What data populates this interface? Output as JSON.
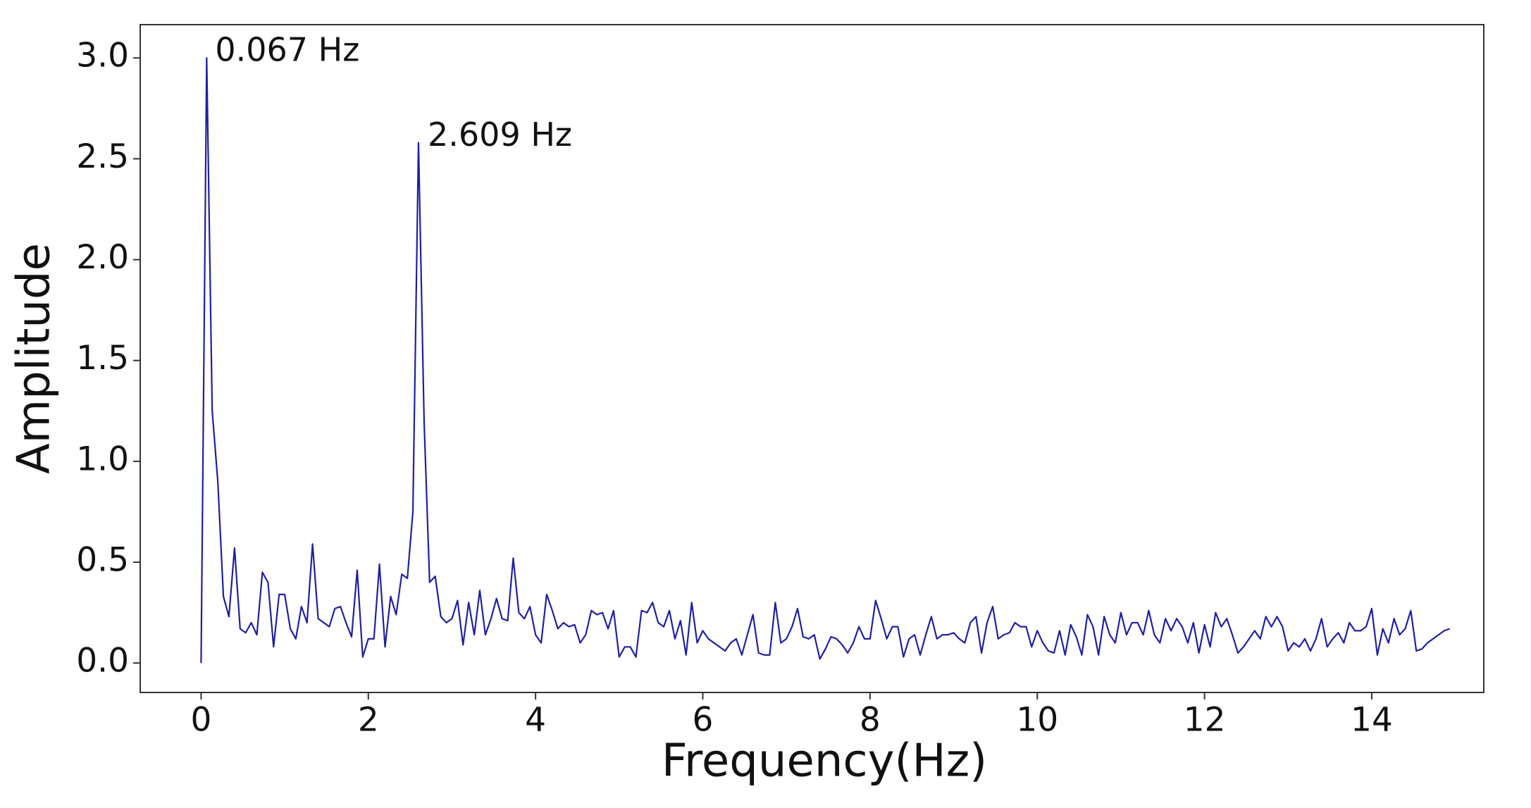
{
  "chart_data": {
    "type": "line",
    "x_label": "Frequency(Hz)",
    "y_label": "Amplitude",
    "color": "#2020a0",
    "xlim": [
      -0.728,
      15.34
    ],
    "ylim": [
      -0.146,
      3.165
    ],
    "xticks": [
      0,
      2,
      4,
      6,
      8,
      10,
      12,
      14
    ],
    "yticks": [
      {
        "value": 0,
        "label": "0.0"
      },
      0.5,
      {
        "value": 1,
        "label": "1.0"
      },
      1.5,
      {
        "value": 2,
        "label": "2.0"
      },
      2.5,
      {
        "value": 3,
        "label": "3.0"
      }
    ],
    "annotations": [
      {
        "text": "0.067 Hz",
        "x": 0.067,
        "y": 3.0
      },
      {
        "text": "2.609 Hz",
        "x": 2.609,
        "y": 2.58
      }
    ],
    "x": [
      0,
      0.067,
      0.133,
      0.2,
      0.267,
      0.333,
      0.4,
      0.467,
      0.533,
      0.6,
      0.667,
      0.733,
      0.8,
      0.867,
      0.933,
      1,
      1.067,
      1.133,
      1.2,
      1.267,
      1.333,
      1.4,
      1.467,
      1.533,
      1.6,
      1.667,
      1.733,
      1.8,
      1.867,
      1.933,
      2,
      2.067,
      2.133,
      2.2,
      2.267,
      2.333,
      2.4,
      2.467,
      2.533,
      2.6,
      2.667,
      2.733,
      2.8,
      2.867,
      2.933,
      3,
      3.067,
      3.133,
      3.2,
      3.267,
      3.333,
      3.4,
      3.467,
      3.533,
      3.6,
      3.667,
      3.733,
      3.8,
      3.867,
      3.933,
      4,
      4.067,
      4.133,
      4.2,
      4.267,
      4.333,
      4.4,
      4.467,
      4.533,
      4.6,
      4.667,
      4.733,
      4.8,
      4.867,
      4.933,
      5,
      5.067,
      5.133,
      5.2,
      5.267,
      5.333,
      5.4,
      5.467,
      5.533,
      5.6,
      5.667,
      5.733,
      5.8,
      5.867,
      5.933,
      6,
      6.067,
      6.133,
      6.2,
      6.267,
      6.333,
      6.4,
      6.467,
      6.533,
      6.6,
      6.667,
      6.733,
      6.8,
      6.867,
      6.933,
      7,
      7.067,
      7.133,
      7.2,
      7.267,
      7.333,
      7.4,
      7.467,
      7.533,
      7.6,
      7.667,
      7.733,
      7.8,
      7.867,
      7.933,
      8,
      8.067,
      8.133,
      8.2,
      8.267,
      8.333,
      8.4,
      8.467,
      8.533,
      8.6,
      8.667,
      8.733,
      8.8,
      8.867,
      8.933,
      9,
      9.067,
      9.133,
      9.2,
      9.267,
      9.333,
      9.4,
      9.467,
      9.533,
      9.6,
      9.667,
      9.733,
      9.8,
      9.867,
      9.933,
      10,
      10.067,
      10.133,
      10.2,
      10.267,
      10.333,
      10.4,
      10.467,
      10.533,
      10.6,
      10.667,
      10.733,
      10.8,
      10.867,
      10.933,
      11,
      11.067,
      11.133,
      11.2,
      11.267,
      11.333,
      11.4,
      11.467,
      11.533,
      11.6,
      11.667,
      11.733,
      11.8,
      11.867,
      11.933,
      12,
      12.067,
      12.133,
      12.2,
      12.267,
      12.333,
      12.4,
      12.467,
      12.533,
      12.6,
      12.667,
      12.733,
      12.8,
      12.867,
      12.933,
      13,
      13.067,
      13.133,
      13.2,
      13.267,
      13.333,
      13.4,
      13.467,
      13.533,
      13.6,
      13.667,
      13.733,
      13.8,
      13.867,
      13.933,
      14,
      14.067,
      14.133,
      14.2,
      14.267,
      14.333,
      14.4,
      14.467,
      14.533,
      14.6,
      14.667,
      14.733,
      14.8,
      14.867,
      14.933
    ],
    "values": [
      0,
      3.0,
      1.25,
      0.9,
      0.33,
      0.23,
      0.57,
      0.17,
      0.15,
      0.2,
      0.14,
      0.45,
      0.4,
      0.08,
      0.34,
      0.34,
      0.17,
      0.12,
      0.28,
      0.2,
      0.59,
      0.22,
      0.2,
      0.18,
      0.27,
      0.28,
      0.2,
      0.13,
      0.46,
      0.03,
      0.12,
      0.12,
      0.49,
      0.08,
      0.33,
      0.24,
      0.44,
      0.42,
      0.75,
      2.58,
      1.2,
      0.4,
      0.43,
      0.23,
      0.2,
      0.22,
      0.31,
      0.09,
      0.3,
      0.14,
      0.36,
      0.14,
      0.22,
      0.32,
      0.22,
      0.21,
      0.52,
      0.25,
      0.22,
      0.28,
      0.14,
      0.1,
      0.34,
      0.26,
      0.17,
      0.2,
      0.18,
      0.19,
      0.1,
      0.14,
      0.26,
      0.24,
      0.25,
      0.17,
      0.26,
      0.03,
      0.08,
      0.08,
      0.03,
      0.26,
      0.25,
      0.3,
      0.2,
      0.18,
      0.26,
      0.12,
      0.21,
      0.04,
      0.3,
      0.1,
      0.16,
      0.12,
      0.1,
      0.08,
      0.06,
      0.1,
      0.12,
      0.04,
      0.14,
      0.24,
      0.05,
      0.04,
      0.04,
      0.3,
      0.1,
      0.12,
      0.18,
      0.27,
      0.13,
      0.12,
      0.14,
      0.02,
      0.07,
      0.13,
      0.12,
      0.09,
      0.05,
      0.1,
      0.18,
      0.12,
      0.12,
      0.31,
      0.22,
      0.12,
      0.18,
      0.18,
      0.03,
      0.12,
      0.14,
      0.04,
      0.14,
      0.23,
      0.12,
      0.14,
      0.14,
      0.15,
      0.12,
      0.1,
      0.2,
      0.23,
      0.05,
      0.2,
      0.28,
      0.12,
      0.14,
      0.15,
      0.2,
      0.18,
      0.18,
      0.08,
      0.16,
      0.1,
      0.06,
      0.05,
      0.16,
      0.04,
      0.19,
      0.13,
      0.04,
      0.24,
      0.18,
      0.04,
      0.23,
      0.14,
      0.1,
      0.25,
      0.14,
      0.2,
      0.2,
      0.14,
      0.26,
      0.14,
      0.1,
      0.22,
      0.16,
      0.22,
      0.18,
      0.1,
      0.2,
      0.05,
      0.19,
      0.08,
      0.25,
      0.18,
      0.22,
      0.14,
      0.05,
      0.08,
      0.12,
      0.16,
      0.12,
      0.23,
      0.18,
      0.23,
      0.18,
      0.06,
      0.1,
      0.08,
      0.12,
      0.06,
      0.12,
      0.22,
      0.08,
      0.12,
      0.15,
      0.1,
      0.2,
      0.16,
      0.16,
      0.18,
      0.27,
      0.04,
      0.17,
      0.1,
      0.22,
      0.14,
      0.17,
      0.26,
      0.06,
      0.07,
      0.1,
      0.12,
      0.14,
      0.16,
      0.17
    ]
  }
}
